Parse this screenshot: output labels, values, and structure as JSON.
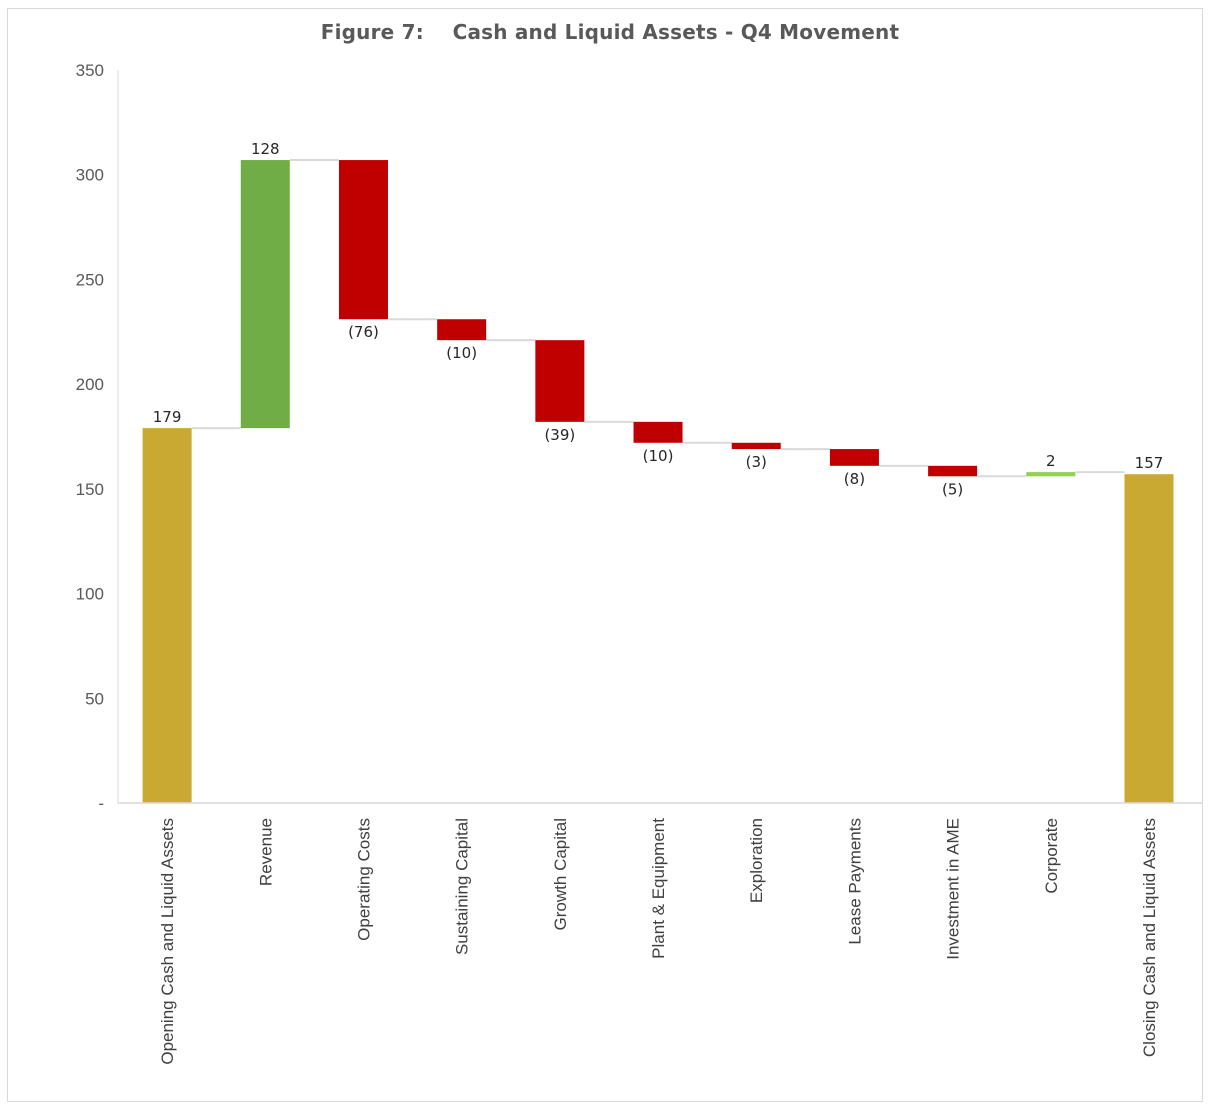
{
  "chart_data": {
    "type": "bar",
    "subtype": "waterfall",
    "title": "Figure 7:    Cash and Liquid Assets - Q4 Movement",
    "xlabel": "",
    "ylabel": "",
    "ylim": [
      0,
      350
    ],
    "yticks": [
      0,
      50,
      100,
      150,
      200,
      250,
      300,
      350
    ],
    "ytick_labels": [
      "-",
      "50",
      "100",
      "150",
      "200",
      "250",
      "300",
      "350"
    ],
    "grid": false,
    "legend": "none",
    "categories": [
      "Opening Cash and Liquid Assets",
      "Revenue",
      "Operating Costs",
      "Sustaining Capital",
      "Growth Capital",
      "Plant & Equipment",
      "Exploration",
      "Lease Payments",
      "Investment in AME",
      "Corporate",
      "Closing Cash and Liquid Assets"
    ],
    "values": [
      179,
      128,
      -76,
      -10,
      -39,
      -10,
      -3,
      -8,
      -5,
      2,
      157
    ],
    "kinds": [
      "total",
      "increase",
      "decrease",
      "decrease",
      "decrease",
      "decrease",
      "decrease",
      "decrease",
      "decrease",
      "increase",
      "total"
    ],
    "data_labels": [
      "179",
      "128",
      "(76)",
      "(10)",
      "(39)",
      "(10)",
      "(3)",
      "(8)",
      "(5)",
      "2",
      "157"
    ],
    "colors": {
      "total": "#c9a932",
      "increase": "#70ad47",
      "increase_small": "#92d050",
      "decrease": "#c00000",
      "connector": "#d9d9d9",
      "axis": "#d9d9d9"
    }
  }
}
